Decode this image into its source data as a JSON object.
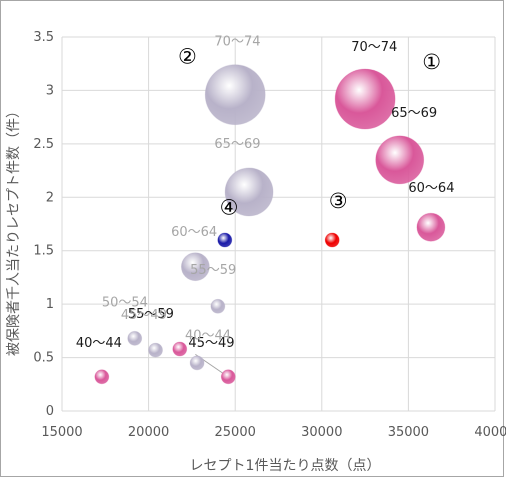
{
  "chart_data": {
    "type": "scatter",
    "title": "",
    "xlabel": "レセプト1件当たり点数（点）",
    "ylabel": "被保険者千人当たりレセプト件数（件）",
    "xlim": [
      15000,
      40000
    ],
    "ylim": [
      0,
      3.5
    ],
    "x_ticks": [
      "15000",
      "20000",
      "25000",
      "30000",
      "35000",
      "40000"
    ],
    "y_ticks": [
      "0",
      "0.5",
      "1",
      "1.5",
      "2",
      "2.5",
      "3",
      "3.5"
    ],
    "grid": true,
    "colors": {
      "pink": "#d9589a",
      "lavender": "#b8b2c9",
      "red": "#ee0000",
      "blue": "#1a1aa8",
      "label_dark": "#1a1a1a",
      "label_gray": "#a6a6a6"
    },
    "series": [
      {
        "color_key": "pink",
        "points": [
          {
            "x": 17300,
            "y": 0.32,
            "label": "40〜44",
            "size": "small"
          },
          {
            "x": 21800,
            "y": 0.58,
            "label": "45〜49",
            "size": "small"
          },
          {
            "x": 24600,
            "y": 0.32,
            "label": "55〜59",
            "size": "small"
          },
          {
            "x": 36300,
            "y": 1.72,
            "label": "60〜64",
            "size": "medium"
          },
          {
            "x": 34500,
            "y": 2.35,
            "label": "65〜69",
            "size": "large"
          },
          {
            "x": 32500,
            "y": 2.92,
            "label": "70〜74",
            "size": "xlarge"
          }
        ]
      },
      {
        "color_key": "lavender",
        "points": [
          {
            "x": 20400,
            "y": 0.57,
            "label": "40〜44",
            "size": "small"
          },
          {
            "x": 22800,
            "y": 0.45,
            "label": "45〜49",
            "size": "small"
          },
          {
            "x": 19200,
            "y": 0.68,
            "label": "50〜54",
            "size": "small"
          },
          {
            "x": 24000,
            "y": 0.98,
            "label": "55〜59",
            "size": "small"
          },
          {
            "x": 22700,
            "y": 1.35,
            "label": "60〜64",
            "size": "medium"
          },
          {
            "x": 25800,
            "y": 2.05,
            "label": "65〜69",
            "size": "large"
          },
          {
            "x": 25000,
            "y": 2.96,
            "label": "70〜74",
            "size": "xlarge"
          }
        ]
      },
      {
        "color_key": "red",
        "points": [
          {
            "x": 30600,
            "y": 1.6,
            "size": "small"
          }
        ]
      },
      {
        "color_key": "blue",
        "points": [
          {
            "x": 24400,
            "y": 1.6,
            "size": "small"
          }
        ]
      }
    ],
    "annotations": [
      {
        "text": "①",
        "x": 35800,
        "y": 3.2
      },
      {
        "text": "②",
        "x": 21700,
        "y": 3.25
      },
      {
        "text": "③",
        "x": 30400,
        "y": 1.9
      },
      {
        "text": "④",
        "x": 24100,
        "y": 1.84
      },
      {
        "text": "40〜44",
        "x": 15800,
        "y": 0.6,
        "color_key": "label_dark"
      },
      {
        "text": "55〜59",
        "x": 18800,
        "y": 0.87,
        "color_key": "label_dark"
      },
      {
        "text": "45〜49",
        "x": 22300,
        "y": 0.6,
        "color_key": "label_dark"
      },
      {
        "text": "40〜44",
        "x": 22100,
        "y": 0.67,
        "color_key": "label_gray"
      },
      {
        "text": "50〜54",
        "x": 17300,
        "y": 0.98,
        "color_key": "label_gray"
      },
      {
        "text": "45〜49",
        "x": 18400,
        "y": 0.86,
        "color_key": "label_gray"
      },
      {
        "text": "55〜59",
        "x": 22400,
        "y": 1.28,
        "color_key": "label_gray"
      },
      {
        "text": "60〜64",
        "x": 21300,
        "y": 1.64,
        "color_key": "label_gray"
      },
      {
        "text": "65〜69",
        "x": 23800,
        "y": 2.46,
        "color_key": "label_gray"
      },
      {
        "text": "70〜74",
        "x": 23800,
        "y": 3.42,
        "color_key": "label_gray"
      },
      {
        "text": "70〜74",
        "x": 31700,
        "y": 3.37,
        "color_key": "label_dark"
      },
      {
        "text": "65〜69",
        "x": 34000,
        "y": 2.75,
        "color_key": "label_dark"
      },
      {
        "text": "60〜64",
        "x": 35000,
        "y": 2.05,
        "color_key": "label_dark"
      }
    ]
  }
}
